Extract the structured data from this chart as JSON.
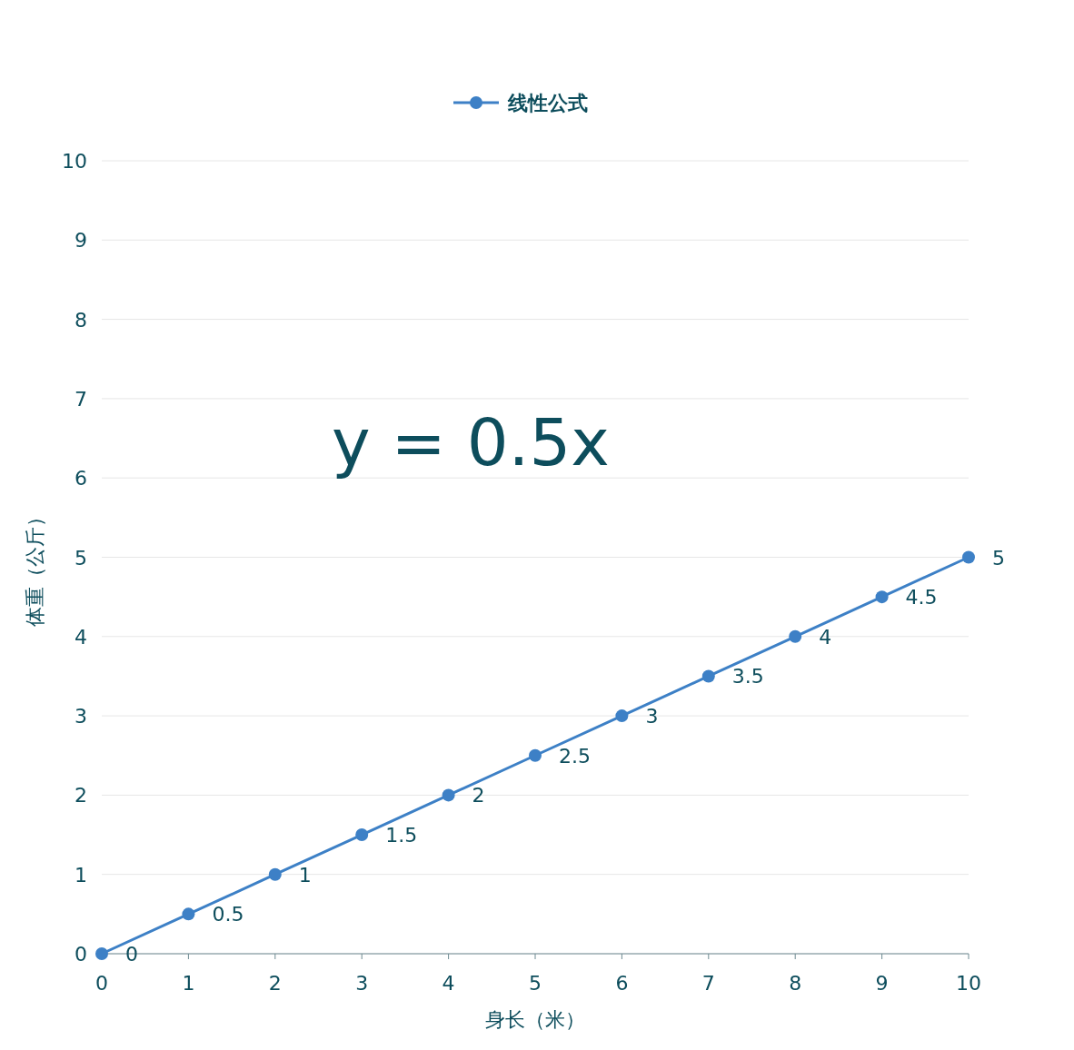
{
  "chart_data": {
    "type": "line",
    "xlabel": "身长（米）",
    "ylabel": "体重（公斤）",
    "annotations": [
      "y = 0.5x"
    ],
    "x": [
      0,
      1,
      2,
      3,
      4,
      5,
      6,
      7,
      8,
      9,
      10
    ],
    "series": [
      {
        "name": "线性公式",
        "color": "#3d80c6",
        "values": [
          0,
          0.5,
          1,
          1.5,
          2,
          2.5,
          3,
          3.5,
          4,
          4.5,
          5
        ]
      }
    ],
    "xlim": [
      0,
      10
    ],
    "ylim": [
      0,
      10
    ],
    "xticks": [
      0,
      1,
      2,
      3,
      4,
      5,
      6,
      7,
      8,
      9,
      10
    ],
    "yticks": [
      0,
      1,
      2,
      3,
      4,
      5,
      6,
      7,
      8,
      9,
      10
    ],
    "grid": "y",
    "legend": "top",
    "marker": "circle",
    "line_style": "solid",
    "data_labels": true
  }
}
